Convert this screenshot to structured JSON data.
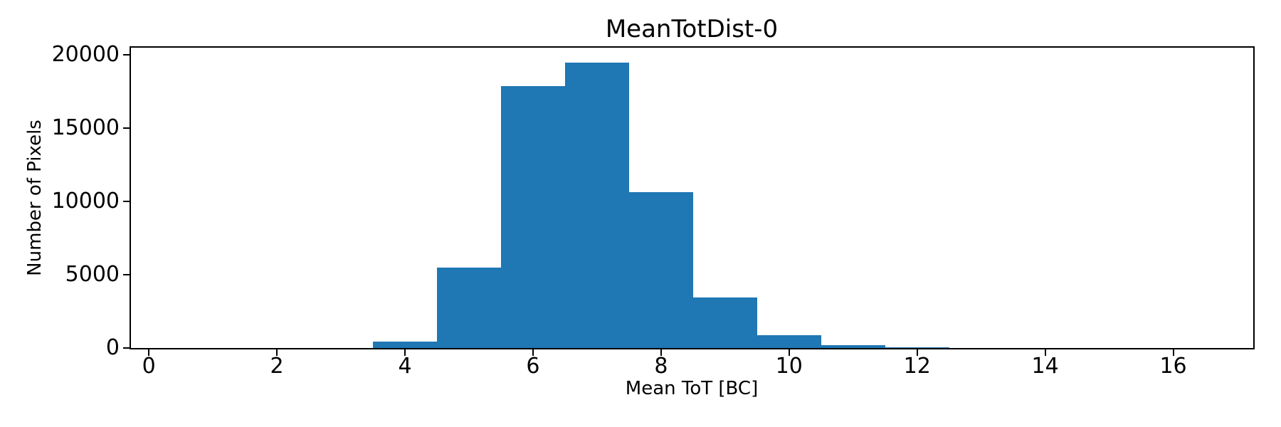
{
  "chart_data": {
    "type": "bar",
    "title": "MeanTotDist-0",
    "xlabel": "Mean ToT [BC]",
    "ylabel": "Number of Pixels",
    "bar_color": "#1f77b4",
    "axis_color": "#000000",
    "bin_edges": [
      3.5,
      4.5,
      5.5,
      6.5,
      7.5,
      8.5,
      9.5,
      10.5,
      11.5,
      12.5
    ],
    "bin_centers": [
      4,
      5,
      6,
      7,
      8,
      9,
      10,
      11,
      12
    ],
    "counts": [
      430,
      5500,
      17850,
      19450,
      10650,
      3450,
      870,
      190,
      60
    ],
    "xticks": [
      0,
      2,
      4,
      6,
      8,
      10,
      12,
      14,
      16
    ],
    "yticks": [
      0,
      5000,
      10000,
      15000,
      20000
    ],
    "xlim": [
      -0.28,
      17.25
    ],
    "ylim": [
      0,
      20480
    ],
    "grid": false,
    "legend": "none"
  }
}
